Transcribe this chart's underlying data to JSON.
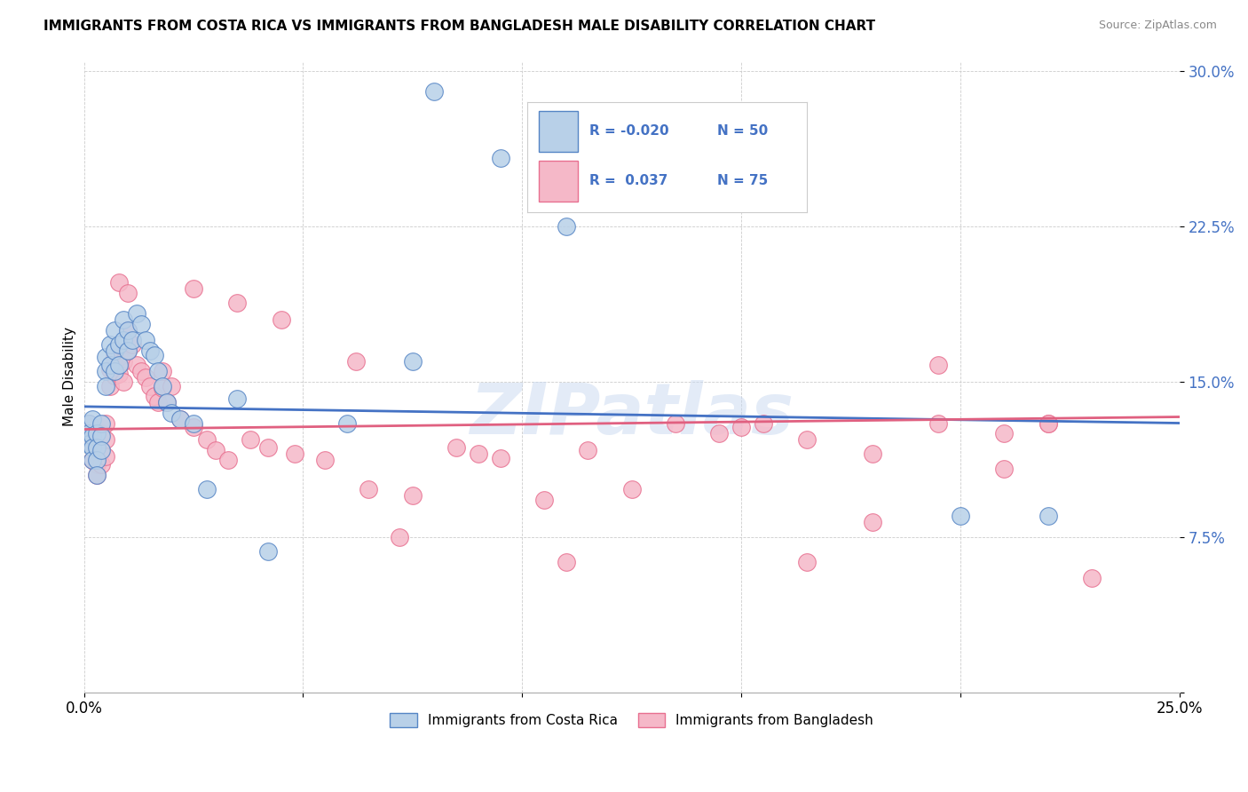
{
  "title": "IMMIGRANTS FROM COSTA RICA VS IMMIGRANTS FROM BANGLADESH MALE DISABILITY CORRELATION CHART",
  "source": "Source: ZipAtlas.com",
  "ylabel": "Male Disability",
  "y_ticks": [
    0.0,
    0.075,
    0.15,
    0.225,
    0.3
  ],
  "y_tick_labels": [
    "",
    "7.5%",
    "15.0%",
    "22.5%",
    "30.0%"
  ],
  "x_tick_labels": [
    "0.0%",
    "",
    "",
    "",
    "",
    "25.0%"
  ],
  "xlim": [
    0.0,
    0.25
  ],
  "ylim": [
    0.0,
    0.305
  ],
  "color_blue_fill": "#b8d0e8",
  "color_pink_fill": "#f5b8c8",
  "color_blue_edge": "#5585c5",
  "color_pink_edge": "#e87090",
  "color_blue_line": "#4472C4",
  "color_pink_line": "#e06080",
  "color_legend_text": "#4472C4",
  "watermark_text": "ZIPatlas",
  "legend_label1": "Immigrants from Costa Rica",
  "legend_label2": "Immigrants from Bangladesh",
  "blue_trend_x0": 0.0,
  "blue_trend_y0": 0.138,
  "blue_trend_x1": 0.25,
  "blue_trend_y1": 0.13,
  "pink_trend_x0": 0.0,
  "pink_trend_y0": 0.127,
  "pink_trend_x1": 0.25,
  "pink_trend_y1": 0.133,
  "blue_x": [
    0.001,
    0.001,
    0.001,
    0.002,
    0.002,
    0.002,
    0.002,
    0.003,
    0.003,
    0.003,
    0.003,
    0.004,
    0.004,
    0.004,
    0.005,
    0.005,
    0.005,
    0.006,
    0.006,
    0.007,
    0.007,
    0.007,
    0.008,
    0.008,
    0.009,
    0.009,
    0.01,
    0.01,
    0.011,
    0.012,
    0.013,
    0.014,
    0.015,
    0.016,
    0.017,
    0.018,
    0.019,
    0.02,
    0.022,
    0.025,
    0.028,
    0.035,
    0.042,
    0.06,
    0.075,
    0.08,
    0.095,
    0.11,
    0.2,
    0.22
  ],
  "blue_y": [
    0.13,
    0.125,
    0.12,
    0.132,
    0.124,
    0.118,
    0.112,
    0.125,
    0.118,
    0.112,
    0.105,
    0.13,
    0.124,
    0.117,
    0.162,
    0.155,
    0.148,
    0.168,
    0.158,
    0.175,
    0.165,
    0.155,
    0.168,
    0.158,
    0.18,
    0.17,
    0.175,
    0.165,
    0.17,
    0.183,
    0.178,
    0.17,
    0.165,
    0.163,
    0.155,
    0.148,
    0.14,
    0.135,
    0.132,
    0.13,
    0.098,
    0.142,
    0.068,
    0.13,
    0.16,
    0.29,
    0.258,
    0.225,
    0.085,
    0.085
  ],
  "pink_x": [
    0.001,
    0.001,
    0.002,
    0.002,
    0.002,
    0.003,
    0.003,
    0.003,
    0.004,
    0.004,
    0.004,
    0.005,
    0.005,
    0.005,
    0.006,
    0.006,
    0.007,
    0.007,
    0.008,
    0.008,
    0.009,
    0.009,
    0.01,
    0.01,
    0.011,
    0.012,
    0.013,
    0.014,
    0.015,
    0.016,
    0.017,
    0.018,
    0.019,
    0.02,
    0.022,
    0.025,
    0.028,
    0.03,
    0.033,
    0.038,
    0.042,
    0.048,
    0.055,
    0.065,
    0.075,
    0.085,
    0.095,
    0.105,
    0.115,
    0.125,
    0.135,
    0.145,
    0.155,
    0.165,
    0.18,
    0.195,
    0.21,
    0.22,
    0.008,
    0.01,
    0.018,
    0.025,
    0.035,
    0.045,
    0.062,
    0.072,
    0.09,
    0.11,
    0.15,
    0.165,
    0.18,
    0.195,
    0.21,
    0.22,
    0.23
  ],
  "pink_y": [
    0.13,
    0.122,
    0.128,
    0.12,
    0.112,
    0.118,
    0.11,
    0.105,
    0.125,
    0.117,
    0.11,
    0.13,
    0.122,
    0.114,
    0.156,
    0.148,
    0.162,
    0.153,
    0.162,
    0.154,
    0.16,
    0.15,
    0.175,
    0.165,
    0.168,
    0.158,
    0.155,
    0.152,
    0.148,
    0.143,
    0.14,
    0.147,
    0.14,
    0.148,
    0.132,
    0.128,
    0.122,
    0.117,
    0.112,
    0.122,
    0.118,
    0.115,
    0.112,
    0.098,
    0.095,
    0.118,
    0.113,
    0.093,
    0.117,
    0.098,
    0.13,
    0.125,
    0.13,
    0.063,
    0.082,
    0.158,
    0.108,
    0.13,
    0.198,
    0.193,
    0.155,
    0.195,
    0.188,
    0.18,
    0.16,
    0.075,
    0.115,
    0.063,
    0.128,
    0.122,
    0.115,
    0.13,
    0.125,
    0.13,
    0.055
  ]
}
